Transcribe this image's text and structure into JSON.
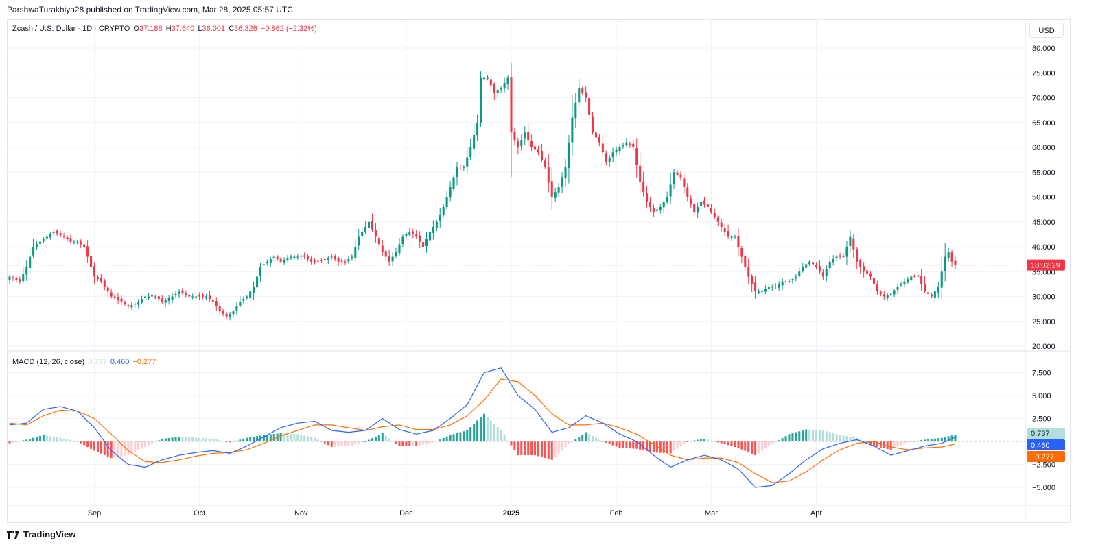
{
  "header": {
    "publisher": "ParshwaTurakhiya28 published on TradingView.com, Mar 28, 2025 05:57 UTC"
  },
  "legend": {
    "symbol": "Zcash / U.S. Dollar · 1D · CRYPTO",
    "o_label": "O",
    "o_value": "37.188",
    "h_label": "H",
    "h_value": "37.640",
    "l_label": "L",
    "l_value": "36.001",
    "c_label": "C",
    "c_value": "36.326",
    "change": "−0.862 (−2.32%)"
  },
  "macd_legend": {
    "label": "MACD (12, 26, close)",
    "hist": "0.737",
    "macd": "0.460",
    "signal": "−0.277"
  },
  "currency_button": "USD",
  "countdown": "18:02:29",
  "footer": {
    "brand": "TradingView"
  },
  "colors": {
    "up": "#089981",
    "down": "#f23645",
    "macd_line": "#2962ff",
    "signal_line": "#ff6d00",
    "hist_up_strong": "#26a69a",
    "hist_up_weak": "#b2dfdb",
    "hist_down_strong": "#ff5252",
    "hist_down_weak": "#ffcdd2"
  },
  "chart_data": [
    {
      "type": "candlestick",
      "title": "Zcash / U.S. Dollar · 1D · CRYPTO",
      "y_ticks": [
        "20.000",
        "25.000",
        "30.000",
        "35.000",
        "40.000",
        "45.000",
        "50.000",
        "55.000",
        "60.000",
        "65.000",
        "70.000",
        "75.000",
        "80.000"
      ],
      "ylim": [
        20,
        80
      ],
      "x_tick_labels": [
        "Sep",
        "Oct",
        "Nov",
        "Dec",
        "2025",
        "Feb",
        "Mar",
        "Apr"
      ],
      "last_close": 36.326,
      "anchors": [
        [
          0,
          34
        ],
        [
          3,
          33
        ],
        [
          5,
          36
        ],
        [
          7,
          40
        ],
        [
          9,
          41
        ],
        [
          11,
          42
        ],
        [
          13,
          43
        ],
        [
          16,
          42
        ],
        [
          18,
          41
        ],
        [
          20,
          41
        ],
        [
          22,
          40
        ],
        [
          23,
          38
        ],
        [
          25,
          34
        ],
        [
          27,
          33
        ],
        [
          30,
          30
        ],
        [
          33,
          29
        ],
        [
          35,
          28
        ],
        [
          37,
          28.5
        ],
        [
          40,
          30
        ],
        [
          43,
          30
        ],
        [
          45,
          29
        ],
        [
          48,
          30
        ],
        [
          50,
          31
        ],
        [
          53,
          30
        ],
        [
          55,
          30
        ],
        [
          58,
          30
        ],
        [
          60,
          29
        ],
        [
          62,
          27
        ],
        [
          64,
          26
        ],
        [
          66,
          27
        ],
        [
          68,
          29
        ],
        [
          70,
          30
        ],
        [
          72,
          32
        ],
        [
          74,
          36
        ],
        [
          76,
          37
        ],
        [
          78,
          38
        ],
        [
          80,
          37
        ],
        [
          83,
          38
        ],
        [
          85,
          38
        ],
        [
          87,
          38
        ],
        [
          89,
          37
        ],
        [
          91,
          37
        ],
        [
          93,
          37.5
        ],
        [
          95,
          38
        ],
        [
          97,
          37
        ],
        [
          99,
          37
        ],
        [
          101,
          38
        ],
        [
          103,
          42
        ],
        [
          105,
          44
        ],
        [
          106,
          45
        ],
        [
          108,
          42
        ],
        [
          110,
          39
        ],
        [
          112,
          37
        ],
        [
          114,
          39
        ],
        [
          116,
          42
        ],
        [
          118,
          43
        ],
        [
          120,
          42
        ],
        [
          122,
          40
        ],
        [
          124,
          43
        ],
        [
          126,
          45
        ],
        [
          128,
          48
        ],
        [
          130,
          52
        ],
        [
          132,
          56
        ],
        [
          134,
          56
        ],
        [
          136,
          60
        ],
        [
          138,
          65
        ],
        [
          139,
          74
        ],
        [
          141,
          74
        ],
        [
          143,
          71
        ],
        [
          145,
          72
        ],
        [
          147,
          74
        ],
        [
          148,
          63
        ],
        [
          150,
          60
        ],
        [
          152,
          63
        ],
        [
          154,
          60
        ],
        [
          156,
          59
        ],
        [
          158,
          56
        ],
        [
          160,
          50
        ],
        [
          162,
          52
        ],
        [
          164,
          56
        ],
        [
          166,
          66
        ],
        [
          168,
          72
        ],
        [
          170,
          70
        ],
        [
          172,
          63
        ],
        [
          174,
          61
        ],
        [
          176,
          57
        ],
        [
          178,
          59
        ],
        [
          180,
          60
        ],
        [
          182,
          61
        ],
        [
          184,
          60
        ],
        [
          186,
          53
        ],
        [
          188,
          49
        ],
        [
          190,
          47
        ],
        [
          192,
          48
        ],
        [
          194,
          50
        ],
        [
          196,
          55
        ],
        [
          198,
          54
        ],
        [
          200,
          50
        ],
        [
          202,
          47
        ],
        [
          204,
          49
        ],
        [
          206,
          48
        ],
        [
          208,
          46
        ],
        [
          210,
          44
        ],
        [
          212,
          42
        ],
        [
          214,
          42
        ],
        [
          216,
          38
        ],
        [
          218,
          34
        ],
        [
          220,
          31
        ],
        [
          222,
          31
        ],
        [
          224,
          32
        ],
        [
          226,
          32
        ],
        [
          228,
          33
        ],
        [
          230,
          33
        ],
        [
          232,
          34
        ],
        [
          234,
          36
        ],
        [
          236,
          37
        ],
        [
          238,
          36
        ],
        [
          240,
          34
        ],
        [
          242,
          37
        ],
        [
          244,
          38
        ],
        [
          246,
          38
        ],
        [
          248,
          42
        ],
        [
          250,
          37
        ],
        [
          252,
          35
        ],
        [
          254,
          34
        ],
        [
          256,
          31
        ],
        [
          258,
          30
        ],
        [
          260,
          30.5
        ],
        [
          262,
          32
        ],
        [
          264,
          33
        ],
        [
          266,
          34
        ],
        [
          268,
          34
        ],
        [
          270,
          31
        ],
        [
          272,
          30
        ],
        [
          274,
          32
        ],
        [
          276,
          38
        ],
        [
          277,
          39
        ],
        [
          278,
          37
        ],
        [
          279,
          36.3
        ]
      ],
      "total_days": 280
    },
    {
      "type": "macd",
      "title": "MACD (12, 26, close)",
      "y_ticks": [
        "−5.000",
        "−2.500",
        "2.500",
        "5.000",
        "7.500"
      ],
      "ylim": [
        -7.5,
        9
      ],
      "macd_anchors": [
        [
          0,
          1.8
        ],
        [
          5,
          2
        ],
        [
          10,
          3.5
        ],
        [
          15,
          3.8
        ],
        [
          20,
          3.3
        ],
        [
          25,
          1.5
        ],
        [
          30,
          -1
        ],
        [
          35,
          -2.5
        ],
        [
          40,
          -2.8
        ],
        [
          45,
          -2
        ],
        [
          50,
          -1.5
        ],
        [
          55,
          -1.2
        ],
        [
          60,
          -1.0
        ],
        [
          65,
          -1.3
        ],
        [
          70,
          -0.5
        ],
        [
          75,
          0.5
        ],
        [
          80,
          1.5
        ],
        [
          85,
          2
        ],
        [
          90,
          2.2
        ],
        [
          95,
          1.2
        ],
        [
          100,
          1.0
        ],
        [
          105,
          1.2
        ],
        [
          110,
          2.5
        ],
        [
          115,
          1.3
        ],
        [
          120,
          0.8
        ],
        [
          125,
          1.2
        ],
        [
          130,
          2.5
        ],
        [
          135,
          4
        ],
        [
          140,
          7.5
        ],
        [
          145,
          8
        ],
        [
          150,
          5
        ],
        [
          155,
          3.5
        ],
        [
          160,
          1.0
        ],
        [
          165,
          1.5
        ],
        [
          170,
          2.8
        ],
        [
          175,
          2
        ],
        [
          180,
          0.8
        ],
        [
          185,
          0
        ],
        [
          190,
          -1.5
        ],
        [
          195,
          -2.8
        ],
        [
          200,
          -2
        ],
        [
          205,
          -1.5
        ],
        [
          210,
          -2
        ],
        [
          215,
          -3
        ],
        [
          220,
          -5
        ],
        [
          225,
          -4.8
        ],
        [
          230,
          -3.5
        ],
        [
          235,
          -2
        ],
        [
          240,
          -0.8
        ],
        [
          245,
          -0.2
        ],
        [
          250,
          0.2
        ],
        [
          255,
          -0.5
        ],
        [
          260,
          -1.5
        ],
        [
          265,
          -1
        ],
        [
          270,
          -0.5
        ],
        [
          275,
          -0.2
        ],
        [
          279,
          0.46
        ]
      ],
      "signal_anchors": [
        [
          0,
          2
        ],
        [
          5,
          1.8
        ],
        [
          10,
          2.8
        ],
        [
          15,
          3.4
        ],
        [
          20,
          3.3
        ],
        [
          25,
          2.5
        ],
        [
          30,
          0.8
        ],
        [
          35,
          -1
        ],
        [
          40,
          -2.2
        ],
        [
          45,
          -2.3
        ],
        [
          50,
          -2
        ],
        [
          55,
          -1.6
        ],
        [
          60,
          -1.3
        ],
        [
          65,
          -1.2
        ],
        [
          70,
          -0.9
        ],
        [
          75,
          -0.2
        ],
        [
          80,
          0.6
        ],
        [
          85,
          1.2
        ],
        [
          90,
          1.8
        ],
        [
          95,
          1.8
        ],
        [
          100,
          1.5
        ],
        [
          105,
          1.2
        ],
        [
          110,
          1.6
        ],
        [
          115,
          1.8
        ],
        [
          120,
          1.3
        ],
        [
          125,
          1.3
        ],
        [
          130,
          1.8
        ],
        [
          135,
          2.8
        ],
        [
          140,
          4.5
        ],
        [
          145,
          6.8
        ],
        [
          150,
          6.5
        ],
        [
          155,
          5
        ],
        [
          160,
          3
        ],
        [
          165,
          1.8
        ],
        [
          170,
          1.8
        ],
        [
          175,
          2
        ],
        [
          180,
          1.5
        ],
        [
          185,
          0.8
        ],
        [
          190,
          -0.3
        ],
        [
          195,
          -1.5
        ],
        [
          200,
          -2
        ],
        [
          205,
          -1.8
        ],
        [
          210,
          -1.8
        ],
        [
          215,
          -2.3
        ],
        [
          220,
          -3.5
        ],
        [
          225,
          -4.5
        ],
        [
          230,
          -4.3
        ],
        [
          235,
          -3.3
        ],
        [
          240,
          -2
        ],
        [
          245,
          -0.9
        ],
        [
          250,
          -0.2
        ],
        [
          255,
          0
        ],
        [
          260,
          -0.6
        ],
        [
          265,
          -0.9
        ],
        [
          270,
          -0.7
        ],
        [
          275,
          -0.6
        ],
        [
          279,
          -0.277
        ]
      ]
    }
  ]
}
